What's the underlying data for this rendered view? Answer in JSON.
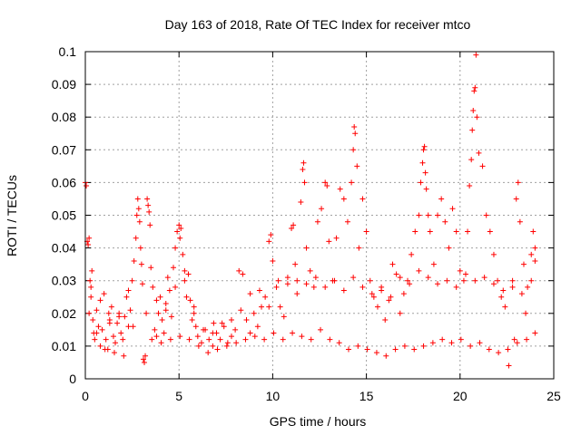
{
  "chart_data": {
    "type": "scatter",
    "title": "Day 163 of 2018, Rate Of TEC Index for receiver mtco",
    "xlabel": "GPS time / hours",
    "ylabel": "ROTI / TECUs",
    "xlim": [
      0,
      25
    ],
    "ylim": [
      0,
      0.1
    ],
    "xticks": [
      0,
      5,
      10,
      15,
      20,
      25
    ],
    "yticks": [
      0,
      0.01,
      0.02,
      0.03,
      0.04,
      0.05,
      0.06,
      0.07,
      0.08,
      0.09,
      0.1
    ],
    "xtick_labels": [
      "0",
      "5",
      "10",
      "15",
      "20",
      "25"
    ],
    "ytick_labels": [
      "0",
      "0.01",
      "0.02",
      "0.03",
      "0.04",
      "0.05",
      "0.06",
      "0.07",
      "0.08",
      "0.09",
      "0.1"
    ],
    "grid": true,
    "marker": "+",
    "color": "#ff0000",
    "series": [
      {
        "points": [
          [
            0.0,
            0.06
          ],
          [
            0.05,
            0.059
          ],
          [
            0.1,
            0.042
          ],
          [
            0.15,
            0.041
          ],
          [
            0.2,
            0.043
          ],
          [
            0.25,
            0.03
          ],
          [
            0.3,
            0.025
          ],
          [
            0.35,
            0.033
          ],
          [
            0.4,
            0.018
          ],
          [
            0.45,
            0.014
          ],
          [
            0.5,
            0.012
          ],
          [
            0.6,
            0.021
          ],
          [
            0.7,
            0.016
          ],
          [
            0.8,
            0.01
          ],
          [
            0.9,
            0.015
          ],
          [
            1.0,
            0.026
          ],
          [
            1.1,
            0.012
          ],
          [
            1.2,
            0.009
          ],
          [
            1.3,
            0.018
          ],
          [
            1.4,
            0.022
          ],
          [
            1.5,
            0.013
          ],
          [
            1.6,
            0.011
          ],
          [
            1.7,
            0.017
          ],
          [
            1.8,
            0.02
          ],
          [
            1.9,
            0.014
          ],
          [
            2.0,
            0.012
          ],
          [
            2.1,
            0.019
          ],
          [
            2.2,
            0.025
          ],
          [
            2.3,
            0.016
          ],
          [
            2.4,
            0.021
          ],
          [
            2.5,
            0.03
          ],
          [
            2.6,
            0.036
          ],
          [
            2.7,
            0.043
          ],
          [
            2.75,
            0.05
          ],
          [
            2.8,
            0.055
          ],
          [
            2.85,
            0.052
          ],
          [
            2.9,
            0.048
          ],
          [
            2.95,
            0.04
          ],
          [
            3.0,
            0.035
          ],
          [
            3.05,
            0.029
          ],
          [
            3.1,
            0.006
          ],
          [
            3.15,
            0.005
          ],
          [
            3.2,
            0.007
          ],
          [
            3.25,
            0.02
          ],
          [
            3.3,
            0.055
          ],
          [
            3.35,
            0.053
          ],
          [
            3.4,
            0.051
          ],
          [
            3.45,
            0.047
          ],
          [
            3.5,
            0.034
          ],
          [
            3.6,
            0.028
          ],
          [
            3.7,
            0.015
          ],
          [
            3.8,
            0.013
          ],
          [
            3.9,
            0.02
          ],
          [
            4.0,
            0.025
          ],
          [
            4.1,
            0.018
          ],
          [
            4.2,
            0.014
          ],
          [
            4.3,
            0.023
          ],
          [
            4.4,
            0.031
          ],
          [
            4.5,
            0.027
          ],
          [
            4.6,
            0.019
          ],
          [
            4.7,
            0.034
          ],
          [
            4.8,
            0.04
          ],
          [
            4.9,
            0.045
          ],
          [
            5.0,
            0.047
          ],
          [
            5.05,
            0.043
          ],
          [
            5.1,
            0.046
          ],
          [
            5.2,
            0.038
          ],
          [
            5.3,
            0.03
          ],
          [
            5.4,
            0.025
          ],
          [
            5.5,
            0.032
          ],
          [
            5.6,
            0.024
          ],
          [
            5.7,
            0.018
          ],
          [
            5.8,
            0.02
          ],
          [
            5.9,
            0.016
          ],
          [
            6.0,
            0.013
          ],
          [
            6.2,
            0.011
          ],
          [
            6.4,
            0.015
          ],
          [
            6.6,
            0.012
          ],
          [
            6.8,
            0.01
          ],
          [
            7.0,
            0.014
          ],
          [
            7.2,
            0.012
          ],
          [
            7.4,
            0.016
          ],
          [
            7.6,
            0.011
          ],
          [
            7.8,
            0.013
          ],
          [
            8.0,
            0.015
          ],
          [
            8.2,
            0.033
          ],
          [
            8.4,
            0.032
          ],
          [
            8.6,
            0.018
          ],
          [
            8.8,
            0.014
          ],
          [
            9.0,
            0.02
          ],
          [
            9.2,
            0.016
          ],
          [
            9.4,
            0.022
          ],
          [
            9.6,
            0.025
          ],
          [
            9.8,
            0.042
          ],
          [
            9.9,
            0.044
          ],
          [
            10.0,
            0.036
          ],
          [
            10.2,
            0.028
          ],
          [
            10.4,
            0.022
          ],
          [
            10.6,
            0.019
          ],
          [
            10.8,
            0.029
          ],
          [
            11.0,
            0.046
          ],
          [
            11.1,
            0.047
          ],
          [
            11.2,
            0.035
          ],
          [
            11.3,
            0.03
          ],
          [
            11.5,
            0.054
          ],
          [
            11.6,
            0.064
          ],
          [
            11.65,
            0.066
          ],
          [
            11.7,
            0.06
          ],
          [
            11.8,
            0.04
          ],
          [
            12.0,
            0.033
          ],
          [
            12.2,
            0.028
          ],
          [
            12.4,
            0.048
          ],
          [
            12.6,
            0.052
          ],
          [
            12.8,
            0.06
          ],
          [
            12.9,
            0.059
          ],
          [
            13.0,
            0.042
          ],
          [
            13.2,
            0.03
          ],
          [
            13.4,
            0.043
          ],
          [
            13.6,
            0.058
          ],
          [
            13.8,
            0.055
          ],
          [
            14.0,
            0.048
          ],
          [
            14.2,
            0.06
          ],
          [
            14.3,
            0.07
          ],
          [
            14.35,
            0.077
          ],
          [
            14.4,
            0.075
          ],
          [
            14.5,
            0.065
          ],
          [
            14.6,
            0.04
          ],
          [
            14.8,
            0.055
          ],
          [
            15.0,
            0.045
          ],
          [
            15.2,
            0.03
          ],
          [
            15.4,
            0.025
          ],
          [
            15.6,
            0.022
          ],
          [
            15.8,
            0.028
          ],
          [
            16.0,
            0.018
          ],
          [
            16.2,
            0.024
          ],
          [
            16.4,
            0.035
          ],
          [
            16.6,
            0.032
          ],
          [
            16.8,
            0.02
          ],
          [
            17.0,
            0.026
          ],
          [
            17.2,
            0.03
          ],
          [
            17.4,
            0.038
          ],
          [
            17.6,
            0.045
          ],
          [
            17.8,
            0.05
          ],
          [
            17.9,
            0.06
          ],
          [
            18.0,
            0.066
          ],
          [
            18.05,
            0.07
          ],
          [
            18.1,
            0.071
          ],
          [
            18.15,
            0.063
          ],
          [
            18.2,
            0.058
          ],
          [
            18.3,
            0.05
          ],
          [
            18.4,
            0.045
          ],
          [
            18.6,
            0.035
          ],
          [
            18.8,
            0.05
          ],
          [
            19.0,
            0.055
          ],
          [
            19.2,
            0.048
          ],
          [
            19.4,
            0.04
          ],
          [
            19.6,
            0.052
          ],
          [
            19.8,
            0.045
          ],
          [
            20.0,
            0.033
          ],
          [
            20.2,
            0.03
          ],
          [
            20.4,
            0.045
          ],
          [
            20.5,
            0.059
          ],
          [
            20.6,
            0.067
          ],
          [
            20.65,
            0.076
          ],
          [
            20.7,
            0.082
          ],
          [
            20.75,
            0.088
          ],
          [
            20.8,
            0.089
          ],
          [
            20.85,
            0.099
          ],
          [
            20.9,
            0.08
          ],
          [
            21.0,
            0.069
          ],
          [
            21.2,
            0.065
          ],
          [
            21.4,
            0.05
          ],
          [
            21.6,
            0.045
          ],
          [
            21.8,
            0.038
          ],
          [
            22.0,
            0.03
          ],
          [
            22.2,
            0.025
          ],
          [
            22.4,
            0.022
          ],
          [
            22.6,
            0.004
          ],
          [
            22.8,
            0.03
          ],
          [
            23.0,
            0.055
          ],
          [
            23.1,
            0.06
          ],
          [
            23.2,
            0.048
          ],
          [
            23.4,
            0.035
          ],
          [
            23.6,
            0.028
          ],
          [
            23.8,
            0.038
          ],
          [
            24.0,
            0.04
          ],
          [
            24.0,
            0.036
          ],
          [
            23.9,
            0.045
          ],
          [
            23.5,
            0.02
          ],
          [
            22.9,
            0.012
          ],
          [
            0.2,
            0.02
          ],
          [
            0.6,
            0.014
          ],
          [
            1.05,
            0.009
          ],
          [
            1.55,
            0.008
          ],
          [
            2.05,
            0.007
          ],
          [
            2.55,
            0.016
          ],
          [
            3.55,
            0.012
          ],
          [
            4.05,
            0.011
          ],
          [
            4.55,
            0.012
          ],
          [
            5.05,
            0.013
          ],
          [
            5.55,
            0.012
          ],
          [
            6.05,
            0.01
          ],
          [
            6.55,
            0.008
          ],
          [
            7.05,
            0.009
          ],
          [
            7.55,
            0.01
          ],
          [
            8.05,
            0.011
          ],
          [
            8.55,
            0.012
          ],
          [
            9.05,
            0.013
          ],
          [
            9.55,
            0.012
          ],
          [
            10.05,
            0.014
          ],
          [
            10.55,
            0.012
          ],
          [
            11.05,
            0.014
          ],
          [
            11.55,
            0.013
          ],
          [
            12.05,
            0.012
          ],
          [
            12.55,
            0.015
          ],
          [
            13.05,
            0.012
          ],
          [
            13.55,
            0.011
          ],
          [
            14.05,
            0.009
          ],
          [
            14.55,
            0.01
          ],
          [
            15.05,
            0.009
          ],
          [
            15.55,
            0.008
          ],
          [
            16.05,
            0.007
          ],
          [
            16.55,
            0.009
          ],
          [
            17.05,
            0.01
          ],
          [
            17.55,
            0.009
          ],
          [
            18.05,
            0.01
          ],
          [
            18.55,
            0.011
          ],
          [
            19.05,
            0.012
          ],
          [
            19.55,
            0.011
          ],
          [
            20.05,
            0.012
          ],
          [
            20.55,
            0.01
          ],
          [
            21.05,
            0.011
          ],
          [
            21.55,
            0.009
          ],
          [
            22.05,
            0.008
          ],
          [
            22.55,
            0.009
          ],
          [
            23.05,
            0.011
          ],
          [
            23.55,
            0.012
          ],
          [
            24.0,
            0.014
          ],
          [
            1.25,
            0.02
          ],
          [
            6.85,
            0.017
          ],
          [
            0.3,
            0.028
          ],
          [
            0.8,
            0.024
          ],
          [
            1.3,
            0.017
          ],
          [
            1.8,
            0.019
          ],
          [
            2.3,
            0.027
          ],
          [
            3.8,
            0.024
          ],
          [
            4.3,
            0.021
          ],
          [
            4.8,
            0.028
          ],
          [
            5.3,
            0.033
          ],
          [
            5.8,
            0.022
          ],
          [
            6.3,
            0.015
          ],
          [
            6.8,
            0.014
          ],
          [
            7.3,
            0.017
          ],
          [
            7.8,
            0.018
          ],
          [
            8.3,
            0.021
          ],
          [
            8.8,
            0.026
          ],
          [
            9.3,
            0.027
          ],
          [
            9.8,
            0.022
          ],
          [
            10.3,
            0.03
          ],
          [
            10.8,
            0.031
          ],
          [
            11.3,
            0.026
          ],
          [
            11.8,
            0.029
          ],
          [
            12.3,
            0.031
          ],
          [
            12.8,
            0.028
          ],
          [
            13.3,
            0.03
          ],
          [
            13.8,
            0.027
          ],
          [
            14.3,
            0.031
          ],
          [
            14.8,
            0.028
          ],
          [
            15.3,
            0.026
          ],
          [
            15.8,
            0.027
          ],
          [
            16.3,
            0.025
          ],
          [
            16.8,
            0.031
          ],
          [
            17.3,
            0.029
          ],
          [
            17.8,
            0.033
          ],
          [
            18.3,
            0.031
          ],
          [
            18.8,
            0.029
          ],
          [
            19.3,
            0.03
          ],
          [
            19.8,
            0.028
          ],
          [
            20.3,
            0.032
          ],
          [
            20.8,
            0.03
          ],
          [
            21.3,
            0.031
          ],
          [
            21.8,
            0.029
          ],
          [
            22.3,
            0.027
          ],
          [
            22.8,
            0.028
          ],
          [
            23.3,
            0.026
          ],
          [
            23.8,
            0.03
          ]
        ]
      }
    ]
  }
}
